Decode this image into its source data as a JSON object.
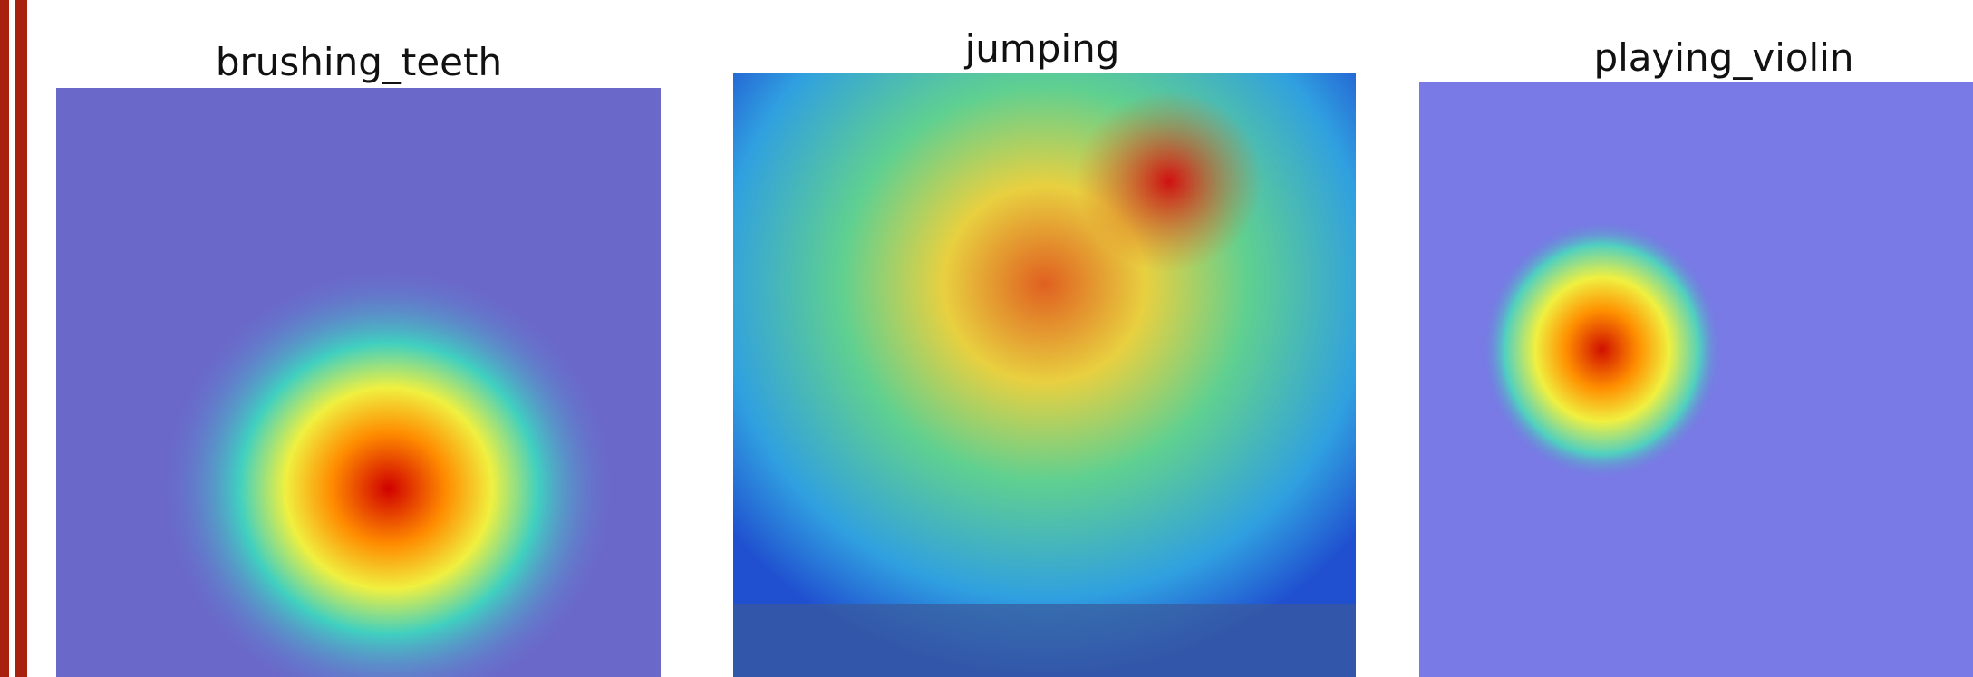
{
  "panels": [
    {
      "title": "brushing_teeth"
    },
    {
      "title": "jumping"
    },
    {
      "title": "playing_violin"
    }
  ]
}
